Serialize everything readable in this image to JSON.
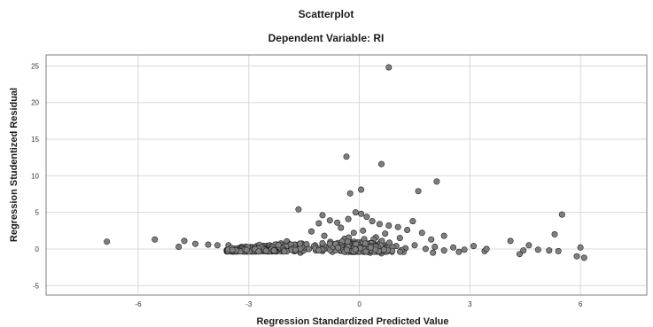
{
  "chart_data": {
    "type": "scatter",
    "title": "Scatterplot",
    "subtitle": "Dependent Variable: RI",
    "xlabel": "Regression Standardized Predicted Value",
    "ylabel": "Regression Studentized Residual",
    "xlim": [
      -8.5,
      7.8
    ],
    "ylim": [
      -6.3,
      26.5
    ],
    "xticks": [
      -6,
      -3,
      0,
      3,
      6
    ],
    "xtick_labels": [
      "-6",
      "-3",
      "0",
      "3",
      "6"
    ],
    "yticks": [
      -5,
      0,
      5,
      10,
      15,
      20,
      25
    ],
    "ytick_labels": [
      "-5",
      "0",
      "5",
      "10",
      "15",
      "20",
      "25"
    ],
    "grid": true,
    "marker_color": "#7f7f7f",
    "marker_edge": "#222222",
    "series": [
      {
        "points": [
          [
            0.8,
            24.8
          ],
          [
            -0.35,
            12.6
          ],
          [
            0.6,
            11.6
          ],
          [
            2.1,
            9.2
          ],
          [
            1.6,
            7.9
          ],
          [
            0.05,
            8.1
          ],
          [
            -0.25,
            7.6
          ],
          [
            -1.65,
            5.4
          ],
          [
            5.5,
            4.7
          ],
          [
            -1.0,
            4.6
          ],
          [
            -0.8,
            3.9
          ],
          [
            -1.1,
            3.5
          ],
          [
            -0.6,
            3.6
          ],
          [
            0.8,
            3.2
          ],
          [
            -0.1,
            5.0
          ],
          [
            0.05,
            4.8
          ],
          [
            0.2,
            4.4
          ],
          [
            -0.3,
            4.1
          ],
          [
            0.35,
            3.8
          ],
          [
            0.55,
            3.4
          ],
          [
            1.45,
            3.8
          ],
          [
            1.05,
            3.0
          ],
          [
            1.3,
            2.6
          ],
          [
            -0.5,
            2.9
          ],
          [
            0.1,
            2.5
          ],
          [
            -0.15,
            2.2
          ],
          [
            1.7,
            2.2
          ],
          [
            2.3,
            1.8
          ],
          [
            -0.95,
            1.8
          ],
          [
            -1.3,
            2.4
          ],
          [
            0.7,
            2.1
          ],
          [
            -0.4,
            1.4
          ],
          [
            0.45,
            1.6
          ],
          [
            1.1,
            1.5
          ],
          [
            1.95,
            1.3
          ],
          [
            -6.85,
            1.0
          ],
          [
            -5.55,
            1.3
          ],
          [
            -4.75,
            1.1
          ],
          [
            -4.9,
            0.3
          ],
          [
            -4.45,
            0.7
          ],
          [
            -4.1,
            0.6
          ],
          [
            -3.85,
            0.5
          ],
          [
            -3.55,
            0.5
          ],
          [
            -3.2,
            0.3
          ],
          [
            -2.9,
            0.2
          ],
          [
            -2.6,
            0.3
          ],
          [
            -2.3,
            0.1
          ],
          [
            -2.0,
            0.3
          ],
          [
            -1.75,
            0.6
          ],
          [
            -1.5,
            0.2
          ],
          [
            -1.2,
            0.5
          ],
          [
            -0.9,
            0.1
          ],
          [
            -0.6,
            0.4
          ],
          [
            -0.3,
            0.0
          ],
          [
            0.0,
            0.5
          ],
          [
            0.25,
            0.1
          ],
          [
            0.5,
            0.6
          ],
          [
            0.75,
            0.0
          ],
          [
            1.0,
            0.4
          ],
          [
            1.25,
            0.1
          ],
          [
            1.5,
            0.5
          ],
          [
            1.8,
            0.0
          ],
          [
            2.05,
            0.3
          ],
          [
            2.3,
            -0.2
          ],
          [
            2.55,
            0.2
          ],
          [
            2.85,
            -0.1
          ],
          [
            3.1,
            0.4
          ],
          [
            3.4,
            -0.3
          ],
          [
            3.45,
            0.0
          ],
          [
            4.1,
            1.1
          ],
          [
            4.35,
            -0.7
          ],
          [
            4.45,
            -0.2
          ],
          [
            4.6,
            0.5
          ],
          [
            4.85,
            -0.1
          ],
          [
            5.15,
            -0.2
          ],
          [
            5.4,
            -0.3
          ],
          [
            5.3,
            2.0
          ],
          [
            5.9,
            -1.0
          ],
          [
            6.0,
            0.2
          ],
          [
            6.1,
            -1.2
          ],
          [
            -0.2,
            -0.4
          ],
          [
            0.3,
            -0.5
          ],
          [
            -1.0,
            -0.3
          ],
          [
            1.2,
            -0.4
          ],
          [
            2.0,
            -0.5
          ],
          [
            -2.5,
            -0.2
          ],
          [
            -1.6,
            -0.5
          ],
          [
            0.6,
            -0.6
          ],
          [
            2.7,
            -0.4
          ],
          [
            -3.3,
            -0.1
          ]
        ]
      }
    ]
  }
}
